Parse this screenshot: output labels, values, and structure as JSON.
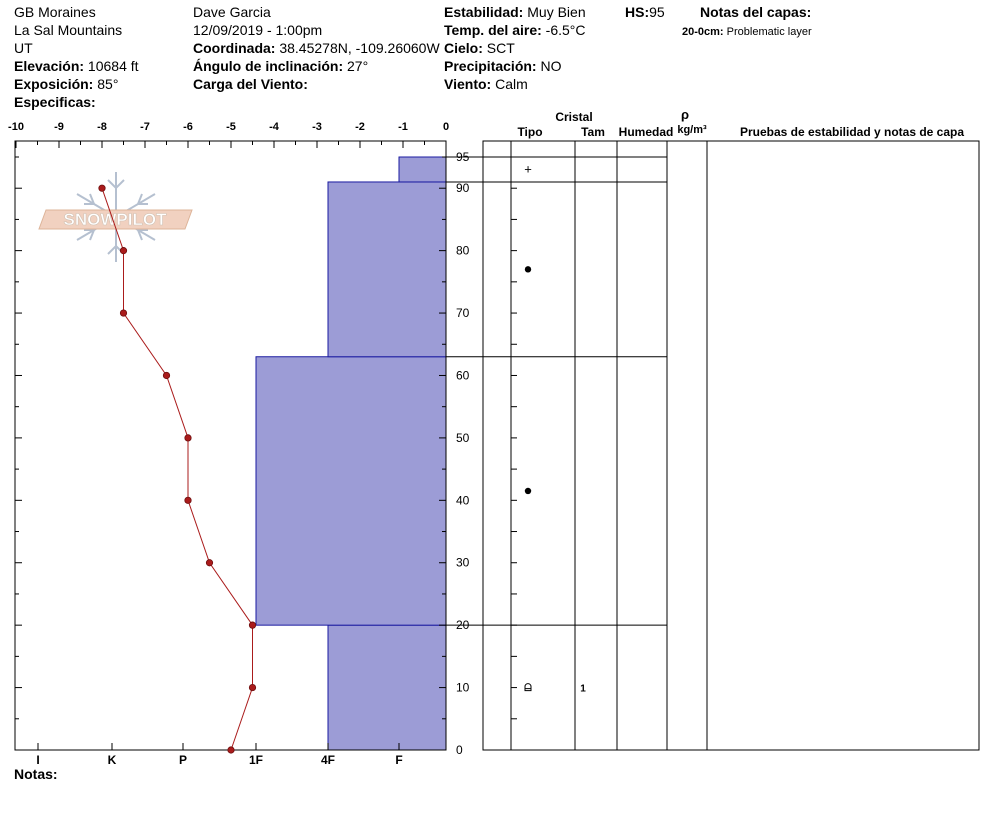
{
  "header": {
    "site": "GB Moraines",
    "range": "La Sal Mountains",
    "state": "UT",
    "elevation_label": "Elevación:",
    "elevation_value": "10684 ft",
    "aspect_label": "Exposición:",
    "aspect_value": "85°",
    "specifics_label": "Especificas:",
    "observer": "Dave Garcia",
    "datetime": "12/09/2019 - 1:00pm",
    "coord_label": "Coordinada:",
    "coord_value": "38.45278N, -109.26060W",
    "slope_label": "Ángulo de inclinación:",
    "slope_value": "27°",
    "wind_load_label": "Carga del Viento:",
    "stability_label": "Estabilidad:",
    "stability_value": "Muy Bien",
    "hs_label": "HS:",
    "hs_value": "95",
    "air_temp_label": "Temp. del aire:",
    "air_temp_value": "-6.5°C",
    "sky_label": "Cielo:",
    "sky_value": "SCT",
    "precip_label": "Precipitación:",
    "precip_value": "NO",
    "wind_label": "Viento:",
    "wind_value": "Calm",
    "layer_notes_label": "Notas del capas:",
    "layer_note_range": "20-0cm:",
    "layer_note_text": "Problematic layer",
    "notes_label": "Notas:"
  },
  "logo": {
    "text": "SNOWPILOT"
  },
  "chart_data": {
    "type": "snow-profile",
    "temp_axis": {
      "range": [
        -10,
        0
      ],
      "ticks": [
        -10,
        -9,
        -8,
        -7,
        -6,
        -5,
        -4,
        -3,
        -2,
        -1,
        0
      ],
      "tick_labels": [
        "-10",
        "-9",
        "-8",
        "-7",
        "-6",
        "-5",
        "-4",
        "-3",
        "-2",
        "-1",
        "0"
      ]
    },
    "height_axis": {
      "range": [
        0,
        95
      ],
      "ticks": [
        0,
        10,
        20,
        30,
        40,
        50,
        60,
        70,
        80,
        90,
        95
      ],
      "tick_labels": [
        "0",
        "10",
        "20",
        "30",
        "40",
        "50",
        "60",
        "70",
        "80",
        "90",
        "95"
      ]
    },
    "hardness_axis": {
      "labels": [
        "I",
        "K",
        "P",
        "1F",
        "4F",
        "F"
      ]
    },
    "temperature_profile": [
      {
        "depth": 0,
        "temp": -5.0
      },
      {
        "depth": 10,
        "temp": -4.5
      },
      {
        "depth": 20,
        "temp": -4.5
      },
      {
        "depth": 30,
        "temp": -5.5
      },
      {
        "depth": 40,
        "temp": -6.0
      },
      {
        "depth": 50,
        "temp": -6.0
      },
      {
        "depth": 60,
        "temp": -6.5
      },
      {
        "depth": 70,
        "temp": -7.5
      },
      {
        "depth": 80,
        "temp": -7.5
      },
      {
        "depth": 90,
        "temp": -8.0
      }
    ],
    "layers": [
      {
        "bottom": 0,
        "top": 20,
        "hardness": "4F",
        "grain": "facets",
        "grain_size": "1",
        "grain_at": 10
      },
      {
        "bottom": 20,
        "top": 63,
        "hardness": "1F",
        "grain": "rounded",
        "grain_size": "",
        "grain_at": 41.5
      },
      {
        "bottom": 63,
        "top": 91,
        "hardness": "4F",
        "grain": "rounded",
        "grain_size": "",
        "grain_at": 77
      },
      {
        "bottom": 91,
        "top": 95,
        "hardness": "F",
        "grain": "new-snow",
        "grain_size": "",
        "grain_at": 93
      }
    ],
    "colors": {
      "hardness_fill": "#9c9cd6",
      "hardness_stroke": "#1a1aa0",
      "temp_line": "#aa1b1b"
    },
    "columns": {
      "crystal": "Cristal",
      "type": "Tipo",
      "size": "Tam",
      "moisture": "Humedad",
      "rho": "ρ",
      "density_unit": "kg/m³",
      "tests": "Pruebas de estabilidad y notas de capa"
    }
  }
}
